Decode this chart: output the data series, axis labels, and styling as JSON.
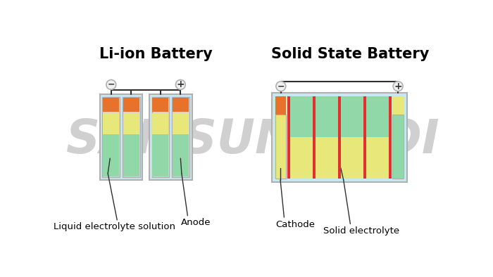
{
  "background_color": "#ffffff",
  "watermark_text": "SAMSUNG SDI",
  "watermark_color": "#d0d0d0",
  "watermark_fontsize": 48,
  "liion_title": "Li-ion Battery",
  "solid_title": "Solid State Battery",
  "title_fontsize": 15,
  "title_fontweight": "bold",
  "liion_label1": "Liquid electrolyte solution",
  "liion_label2": "Anode",
  "solid_label1": "Cathode",
  "solid_label2": "Solid electrolyte",
  "label_fontsize": 9.5,
  "orange_color": "#E8722A",
  "yellow_color": "#E8E87A",
  "green_color": "#90D8A8",
  "lightblue_color": "#C8E8F0",
  "red_color": "#E03030",
  "gray_outer": "#B0B0B0",
  "gray_inner": "#D8D8D8",
  "wire_color": "#303030",
  "terminal_bg": "#F0F0F0",
  "annotation_color": "#000000"
}
